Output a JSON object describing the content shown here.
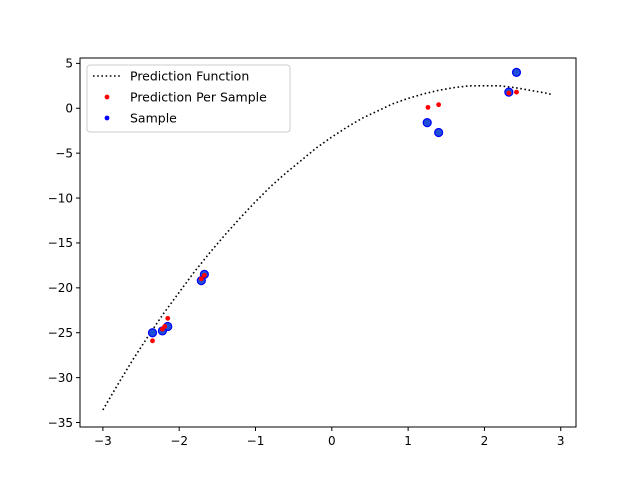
{
  "chart_data": {
    "type": "scatter",
    "title": "",
    "xlabel": "",
    "ylabel": "",
    "xlim": [
      -3.3,
      3.2
    ],
    "ylim": [
      -35.5,
      5.6
    ],
    "xticks": [
      -3,
      -2,
      -1,
      0,
      1,
      2,
      3
    ],
    "yticks": [
      5,
      0,
      -5,
      -10,
      -15,
      -20,
      -25,
      -30,
      -35
    ],
    "xtick_labels": [
      "−3",
      "−2",
      "−1",
      "0",
      "1",
      "2",
      "3"
    ],
    "ytick_labels": [
      "5",
      "0",
      "−5",
      "−10",
      "−15",
      "−20",
      "−25",
      "−30",
      "−35"
    ],
    "grid": false,
    "legend_position": "top-left",
    "series": [
      {
        "name": "Prediction Function",
        "kind": "dotted-line",
        "color": "#000000",
        "x": [
          -3.0,
          -2.8,
          -2.6,
          -2.4,
          -2.2,
          -2.0,
          -1.8,
          -1.6,
          -1.4,
          -1.2,
          -1.0,
          -0.8,
          -0.6,
          -0.4,
          -0.2,
          0.0,
          0.2,
          0.4,
          0.6,
          0.8,
          1.0,
          1.2,
          1.4,
          1.6,
          1.8,
          2.0,
          2.2,
          2.4,
          2.6,
          2.8,
          2.9
        ],
        "y": [
          -33.6,
          -30.7,
          -27.9,
          -25.3,
          -22.8,
          -20.5,
          -18.2,
          -16.1,
          -14.1,
          -12.2,
          -10.4,
          -8.7,
          -7.2,
          -5.8,
          -4.4,
          -3.2,
          -2.1,
          -1.1,
          -0.3,
          0.5,
          1.1,
          1.6,
          2.0,
          2.3,
          2.5,
          2.5,
          2.5,
          2.3,
          2.0,
          1.7,
          1.5
        ]
      },
      {
        "name": "Prediction Per Sample",
        "kind": "points",
        "color": "#ff0000",
        "x": [
          -2.35,
          -2.22,
          -2.19,
          -2.15,
          -1.71,
          -1.67,
          1.26,
          1.4,
          2.32,
          2.42
        ],
        "y": [
          -25.9,
          -24.6,
          -24.3,
          -23.4,
          -19.0,
          -18.6,
          0.1,
          0.4,
          1.7,
          1.8
        ]
      },
      {
        "name": "Sample",
        "kind": "points",
        "color": "#0000ff",
        "x": [
          -2.35,
          -2.22,
          -2.15,
          -1.71,
          -1.67,
          1.25,
          1.4,
          2.32,
          2.42
        ],
        "y": [
          -25.0,
          -24.8,
          -24.3,
          -19.2,
          -18.5,
          -1.6,
          -2.7,
          1.8,
          4.0
        ]
      }
    ]
  }
}
